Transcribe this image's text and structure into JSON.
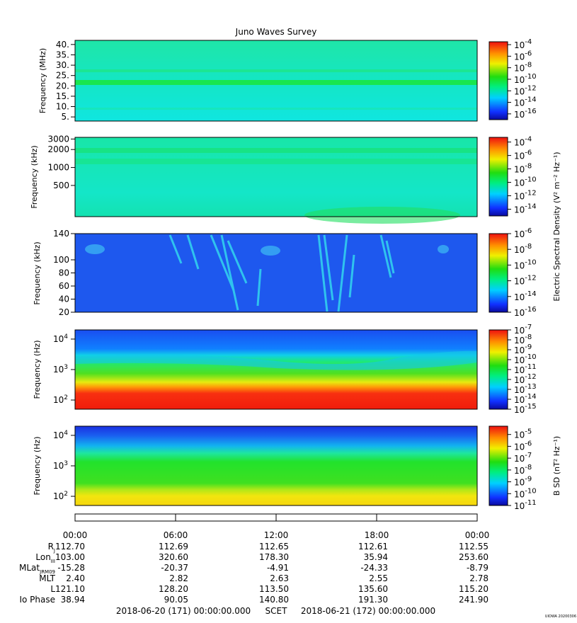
{
  "title": "Juno Waves Survey",
  "chart_data": {
    "type": "heatmap",
    "title": "Juno Waves Survey",
    "time_axis": {
      "labels": [
        "00:00",
        "06:00",
        "12:00",
        "18:00",
        "00:00"
      ]
    },
    "panels": [
      {
        "ylabel": "Frequency (MHz)",
        "ticks": [
          {
            "v": 40,
            "t": "40."
          },
          {
            "v": 35,
            "t": "35."
          },
          {
            "v": 30,
            "t": "30."
          },
          {
            "v": 25,
            "t": "25."
          },
          {
            "v": 20,
            "t": "20."
          },
          {
            "v": 15,
            "t": "15."
          },
          {
            "v": 10,
            "t": "10."
          },
          {
            "v": 5,
            "t": "5."
          }
        ],
        "ylim": [
          3,
          42
        ],
        "log": false,
        "colorbar": {
          "labels": [
            {
              "b": "10",
              "e": "-4",
              "v": -4
            },
            {
              "b": "10",
              "e": "-6",
              "v": -6
            },
            {
              "b": "10",
              "e": "-8",
              "v": -8
            },
            {
              "b": "10",
              "e": "-10",
              "v": -10
            },
            {
              "b": "10",
              "e": "-12",
              "v": -12
            },
            {
              "b": "10",
              "e": "-14",
              "v": -14
            },
            {
              "b": "10",
              "e": "-16",
              "v": -16
            }
          ],
          "range": [
            -17,
            -3.5
          ]
        }
      },
      {
        "ylabel": "Frequency (kHz)",
        "ticks": [
          {
            "v": 3000,
            "t": "3000"
          },
          {
            "v": 2000,
            "t": "2000"
          },
          {
            "v": 1000,
            "t": "1000"
          },
          {
            "v": 500,
            "t": "500"
          }
        ],
        "ylim": [
          150,
          3200
        ],
        "log": true,
        "colorbar": {
          "labels": [
            {
              "b": "10",
              "e": "-4",
              "v": -4
            },
            {
              "b": "10",
              "e": "-6",
              "v": -6
            },
            {
              "b": "10",
              "e": "-8",
              "v": -8
            },
            {
              "b": "10",
              "e": "-10",
              "v": -10
            },
            {
              "b": "10",
              "e": "-12",
              "v": -12
            },
            {
              "b": "10",
              "e": "-14",
              "v": -14
            }
          ],
          "range": [
            -15,
            -3.3
          ]
        }
      },
      {
        "ylabel": "Frequency (kHz)",
        "ticks": [
          {
            "v": 140,
            "t": "140"
          },
          {
            "v": 100,
            "t": "100"
          },
          {
            "v": 80,
            "t": "80"
          },
          {
            "v": 60,
            "t": "60"
          },
          {
            "v": 40,
            "t": "40"
          },
          {
            "v": 20,
            "t": "20"
          }
        ],
        "ylim": [
          20,
          140
        ],
        "log": false,
        "colorbar": {
          "labels": [
            {
              "b": "10",
              "e": "-6",
              "v": -6
            },
            {
              "b": "10",
              "e": "-8",
              "v": -8
            },
            {
              "b": "10",
              "e": "-10",
              "v": -10
            },
            {
              "b": "10",
              "e": "-12",
              "v": -12
            },
            {
              "b": "10",
              "e": "-14",
              "v": -14
            },
            {
              "b": "10",
              "e": "-16",
              "v": -16
            }
          ],
          "range": [
            -16,
            -6
          ]
        }
      },
      {
        "ylabel": "Frequency (Hz)",
        "ticks": [
          {
            "b": "10",
            "e": "4",
            "v": 10000
          },
          {
            "b": "10",
            "e": "3",
            "v": 1000
          },
          {
            "b": "10",
            "e": "2",
            "v": 100
          }
        ],
        "ylim": [
          50,
          20000
        ],
        "log": true,
        "colorbar": {
          "labels": [
            {
              "b": "10",
              "e": "-7",
              "v": -7
            },
            {
              "b": "10",
              "e": "-8",
              "v": -8
            },
            {
              "b": "10",
              "e": "-9",
              "v": -9
            },
            {
              "b": "10",
              "e": "-10",
              "v": -10
            },
            {
              "b": "10",
              "e": "-11",
              "v": -11
            },
            {
              "b": "10",
              "e": "-12",
              "v": -12
            },
            {
              "b": "10",
              "e": "-13",
              "v": -13
            },
            {
              "b": "10",
              "e": "-14",
              "v": -14
            },
            {
              "b": "10",
              "e": "-15",
              "v": -15
            }
          ],
          "range": [
            -15,
            -7
          ]
        }
      },
      {
        "ylabel": "Frequency (Hz)",
        "ticks": [
          {
            "b": "10",
            "e": "4",
            "v": 10000
          },
          {
            "b": "10",
            "e": "3",
            "v": 1000
          },
          {
            "b": "10",
            "e": "2",
            "v": 100
          }
        ],
        "ylim": [
          50,
          20000
        ],
        "log": true,
        "colorbar": {
          "labels": [
            {
              "b": "10",
              "e": "-5",
              "v": -5
            },
            {
              "b": "10",
              "e": "-6",
              "v": -6
            },
            {
              "b": "10",
              "e": "-7",
              "v": -7
            },
            {
              "b": "10",
              "e": "-8",
              "v": -8
            },
            {
              "b": "10",
              "e": "-9",
              "v": -9
            },
            {
              "b": "10",
              "e": "-10",
              "v": -10
            },
            {
              "b": "10",
              "e": "-11",
              "v": -11
            }
          ],
          "range": [
            -11,
            -4.3
          ]
        }
      }
    ],
    "colorbar_titles": {
      "electric": "Electric Spectral Density (V² m⁻² Hz⁻¹)",
      "magnetic": "B SD (nT² Hz⁻¹)"
    }
  },
  "ephemeris": {
    "rows": [
      {
        "label": "R",
        "sub": "J",
        "values": [
          "112.70",
          "112.69",
          "112.65",
          "112.61",
          "112.55"
        ]
      },
      {
        "label": "Lon",
        "sub": "III",
        "values": [
          "103.00",
          "320.60",
          "178.30",
          "35.94",
          "253.60"
        ]
      },
      {
        "label": "MLat",
        "sub": "JRM09",
        "values": [
          "-15.28",
          "-20.37",
          "-4.91",
          "-24.33",
          "-8.79"
        ]
      },
      {
        "label": "MLT",
        "sub": "",
        "values": [
          "2.40",
          "2.82",
          "2.63",
          "2.55",
          "2.78"
        ]
      },
      {
        "label": "L",
        "sub": "",
        "values": [
          "121.10",
          "128.20",
          "113.50",
          "135.60",
          "115.20"
        ]
      },
      {
        "label": "Io Phase",
        "sub": "",
        "values": [
          "38.94",
          "90.05",
          "140.80",
          "191.30",
          "241.90"
        ]
      }
    ]
  },
  "footer": {
    "start": "2018-06-20 (171) 00:00:00.000",
    "scet": "SCET",
    "end": "2018-06-21 (172) 00:00:00.000",
    "stamp": "UIOWA 20200306"
  },
  "colors": {
    "blue": "#1f4fe8",
    "cyan": "#22e4e6",
    "green": "#22e22c",
    "yellow": "#f2e80e",
    "red": "#f2200e"
  }
}
